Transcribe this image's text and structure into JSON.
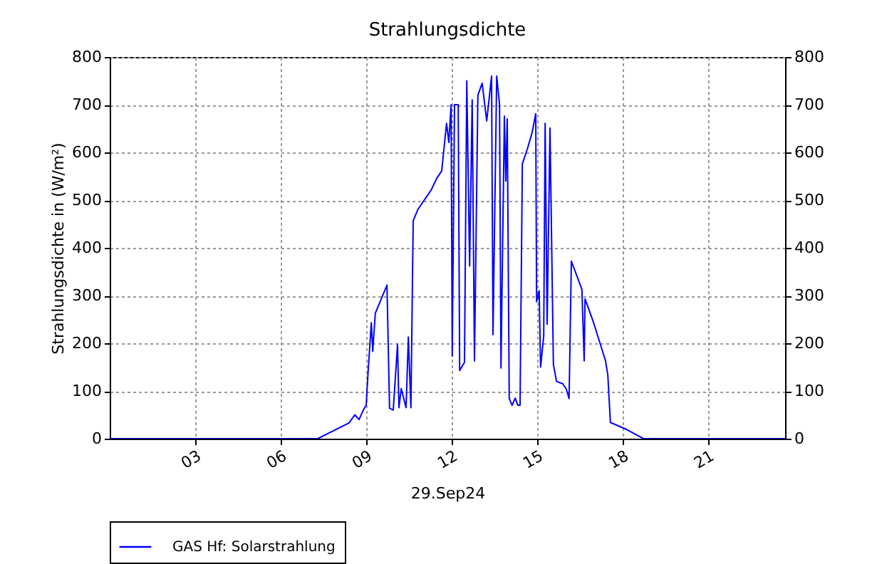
{
  "chart_data": {
    "type": "line",
    "title": "Strahlungsdichte",
    "xlabel": "29.Sep24",
    "ylabel": "Strahlungsdichte in (W/m²)",
    "xlim": [
      0,
      23.7
    ],
    "xticks": [
      {
        "value": 3,
        "label": "03"
      },
      {
        "value": 6,
        "label": "06"
      },
      {
        "value": 9,
        "label": "09"
      },
      {
        "value": 12,
        "label": "12"
      },
      {
        "value": 15,
        "label": "15"
      },
      {
        "value": 18,
        "label": "18"
      },
      {
        "value": 21,
        "label": "21"
      }
    ],
    "ylim": [
      0,
      800
    ],
    "yticks": [
      0,
      100,
      200,
      300,
      400,
      500,
      600,
      700,
      800
    ],
    "y2lim": [
      0,
      800
    ],
    "y2ticks": [
      0,
      100,
      200,
      300,
      400,
      500,
      600,
      700,
      800
    ],
    "grid": true,
    "legend": "bottom",
    "series": [
      {
        "name": "GAS Hf: Solarstrahlung",
        "color": "#0000ff",
        "x": [
          0,
          7.3,
          8.4,
          8.6,
          8.75,
          8.9,
          9.0,
          9.07,
          9.18,
          9.23,
          9.32,
          9.73,
          9.82,
          9.95,
          10.1,
          10.15,
          10.23,
          10.4,
          10.48,
          10.57,
          10.65,
          10.82,
          11.28,
          11.48,
          11.65,
          11.82,
          11.9,
          11.98,
          12.02,
          12.1,
          12.23,
          12.28,
          12.45,
          12.53,
          12.63,
          12.72,
          12.8,
          12.92,
          13.07,
          13.23,
          13.4,
          13.45,
          13.58,
          13.68,
          13.73,
          13.85,
          13.9,
          13.95,
          14.02,
          14.12,
          14.23,
          14.32,
          14.4,
          14.48,
          14.65,
          14.82,
          14.95,
          14.98,
          15.07,
          15.12,
          15.23,
          15.28,
          15.35,
          15.45,
          15.57,
          15.68,
          15.9,
          16.02,
          16.12,
          16.2,
          16.57,
          16.65,
          16.68,
          16.98,
          17.4,
          17.48,
          17.57,
          18.15,
          18.73,
          23.7
        ],
        "values": [
          0,
          0,
          33,
          50,
          40,
          60,
          70,
          143,
          243,
          183,
          263,
          322,
          64,
          60,
          198,
          65,
          105,
          65,
          213,
          65,
          457,
          481,
          521,
          546,
          561,
          661,
          621,
          700,
          173,
          700,
          700,
          143,
          160,
          750,
          362,
          710,
          163,
          720,
          745,
          666,
          760,
          218,
          760,
          700,
          148,
          676,
          540,
          670,
          84,
          70,
          85,
          70,
          70,
          576,
          606,
          641,
          681,
          287,
          310,
          150,
          215,
          661,
          240,
          651,
          155,
          120,
          115,
          104,
          84,
          372,
          313,
          163,
          293,
          243,
          163,
          133,
          34,
          19,
          0,
          0
        ]
      }
    ]
  }
}
